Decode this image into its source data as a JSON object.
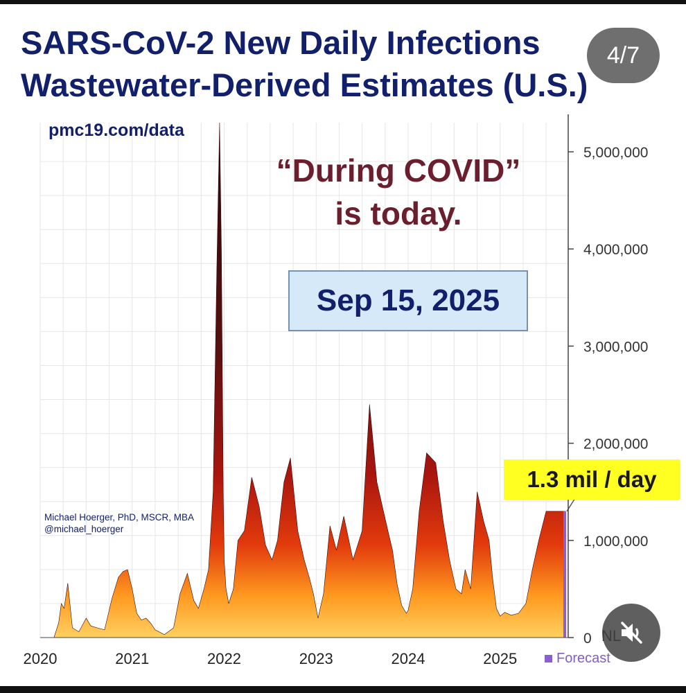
{
  "chart_data": {
    "type": "area",
    "title": [
      "SARS-CoV-2 New Daily Infections",
      "Wastewater-Derived Estimates (U.S.)"
    ],
    "x_ticks": [
      "2020",
      "2021",
      "2022",
      "2023",
      "2024",
      "2025"
    ],
    "y_ticks": [
      "0",
      "1,000,000",
      "2,000,000",
      "3,000,000",
      "4,000,000",
      "5,000,000"
    ],
    "ylim": [
      0,
      5300000
    ],
    "grid": true,
    "source": "pmc19.com/data",
    "author": [
      "Michael Hoerger, PhD, MSCR, MBA",
      "@michael_hoerger"
    ],
    "headline": [
      "“During COVID”",
      "is today."
    ],
    "date": "Sep 15, 2025",
    "current_rate": "1.3 mil / day",
    "legend": "Forecast",
    "nl_label": "NL",
    "series": [
      {
        "x": [
          2020.15,
          2020.2,
          2020.23,
          2020.26,
          2020.3,
          2020.35,
          2020.42,
          2020.5,
          2020.55,
          2020.62,
          2020.7,
          2020.78,
          2020.85,
          2020.9,
          2020.95,
          2021.0,
          2021.05,
          2021.1,
          2021.15,
          2021.2,
          2021.25,
          2021.35,
          2021.45,
          2021.52,
          2021.6,
          2021.67,
          2021.72,
          2021.78,
          2021.83,
          2021.88,
          2021.92,
          2021.95,
          2021.97,
          2021.99,
          2022.0,
          2022.02,
          2022.05,
          2022.1,
          2022.15,
          2022.22,
          2022.3,
          2022.38,
          2022.45,
          2022.52,
          2022.58,
          2022.65,
          2022.72,
          2022.8,
          2022.87,
          2022.93,
          2022.97,
          2023.02,
          2023.08,
          2023.15,
          2023.22,
          2023.3,
          2023.4,
          2023.5,
          2023.58,
          2023.66,
          2023.72,
          2023.78,
          2023.83,
          2023.88,
          2023.93,
          2023.98,
          2024.0,
          2024.05,
          2024.12,
          2024.2,
          2024.3,
          2024.38,
          2024.45,
          2024.52,
          2024.58,
          2024.62,
          2024.68,
          2024.75,
          2024.82,
          2024.88,
          2024.92,
          2024.96,
          2025.0,
          2025.05,
          2025.12,
          2025.2,
          2025.28,
          2025.35,
          2025.42,
          2025.5,
          2025.57,
          2025.63,
          2025.68,
          2025.71
        ],
        "values": [
          0,
          150000,
          350000,
          300000,
          560000,
          100000,
          60000,
          200000,
          120000,
          100000,
          80000,
          400000,
          620000,
          680000,
          700000,
          500000,
          250000,
          180000,
          200000,
          150000,
          80000,
          30000,
          100000,
          450000,
          660000,
          380000,
          300000,
          500000,
          700000,
          1500000,
          3800000,
          5300000,
          4000000,
          1500000,
          800000,
          500000,
          350000,
          500000,
          1000000,
          1100000,
          1650000,
          1350000,
          950000,
          800000,
          1000000,
          1600000,
          1850000,
          1100000,
          800000,
          600000,
          450000,
          200000,
          450000,
          1150000,
          900000,
          1250000,
          800000,
          1100000,
          2400000,
          1600000,
          1350000,
          1100000,
          900000,
          550000,
          330000,
          250000,
          280000,
          500000,
          1300000,
          1900000,
          1800000,
          1200000,
          800000,
          500000,
          450000,
          700000,
          500000,
          1500000,
          1200000,
          1000000,
          600000,
          300000,
          220000,
          260000,
          230000,
          250000,
          350000,
          700000,
          1000000,
          1300000,
          1300000,
          1300000,
          1300000,
          1300000
        ]
      }
    ]
  },
  "ui": {
    "page_indicator": "4/7",
    "mute_icon": "muted-speaker-icon"
  }
}
